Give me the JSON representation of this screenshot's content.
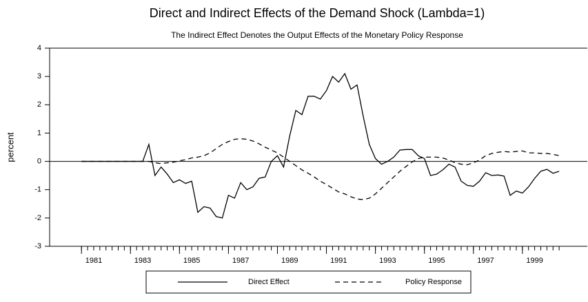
{
  "chart_data": {
    "type": "line",
    "title": "Direct and Indirect Effects of the Demand Shock (Lambda=1)",
    "subtitle": "The Indirect Effect Denotes the Output Effects of the Monetary Policy Response",
    "y_label": "percent",
    "x": [
      1981,
      1981.25,
      1981.5,
      1981.75,
      1982,
      1982.25,
      1982.5,
      1982.75,
      1983,
      1983.25,
      1983.5,
      1983.75,
      1984,
      1984.25,
      1984.5,
      1984.75,
      1985,
      1985.25,
      1985.5,
      1985.75,
      1986,
      1986.25,
      1986.5,
      1986.75,
      1987,
      1987.25,
      1987.5,
      1987.75,
      1988,
      1988.25,
      1988.5,
      1988.75,
      1989,
      1989.25,
      1989.5,
      1989.75,
      1990,
      1990.25,
      1990.5,
      1990.75,
      1991,
      1991.25,
      1991.5,
      1991.75,
      1992,
      1992.25,
      1992.5,
      1992.75,
      1993,
      1993.25,
      1993.5,
      1993.75,
      1994,
      1994.25,
      1994.5,
      1994.75,
      1995,
      1995.25,
      1995.5,
      1995.75,
      1996,
      1996.25,
      1996.5,
      1996.75,
      1997,
      1997.25,
      1997.5,
      1997.75,
      1998,
      1998.25,
      1998.5,
      1998.75,
      1999,
      1999.25,
      1999.5,
      1999.75,
      2000,
      2000.25,
      2000.5
    ],
    "series": [
      {
        "name": "Direct Effect",
        "color": "#000000",
        "dash": "solid",
        "values": [
          0,
          0,
          0,
          0,
          0,
          0,
          0,
          0,
          0,
          0,
          0,
          0.6,
          -0.5,
          -0.2,
          -0.45,
          -0.75,
          -0.65,
          -0.78,
          -0.7,
          -1.8,
          -1.6,
          -1.65,
          -1.95,
          -2.0,
          -1.2,
          -1.3,
          -0.75,
          -1.0,
          -0.9,
          -0.6,
          -0.55,
          0.0,
          0.2,
          -0.2,
          0.9,
          1.8,
          1.65,
          2.3,
          2.3,
          2.2,
          2.5,
          3.0,
          2.8,
          3.1,
          2.55,
          2.7,
          1.6,
          0.6,
          0.1,
          -0.1,
          0.0,
          0.15,
          0.4,
          0.42,
          0.42,
          0.2,
          0.1,
          -0.5,
          -0.45,
          -0.3,
          -0.1,
          -0.2,
          -0.7,
          -0.85,
          -0.88,
          -0.7,
          -0.4,
          -0.5,
          -0.48,
          -0.52,
          -1.2,
          -1.05,
          -1.12,
          -0.9,
          -0.6,
          -0.35,
          -0.28,
          -0.42,
          -0.35
        ]
      },
      {
        "name": "Policy Response",
        "color": "#000000",
        "dash": "dashed",
        "values": [
          0,
          0,
          0,
          0,
          0,
          0,
          0,
          0,
          0,
          0,
          0,
          0,
          -0.05,
          -0.08,
          -0.05,
          -0.03,
          0.02,
          0.06,
          0.12,
          0.15,
          0.2,
          0.3,
          0.45,
          0.6,
          0.7,
          0.78,
          0.8,
          0.78,
          0.72,
          0.62,
          0.5,
          0.4,
          0.3,
          0.15,
          0.0,
          -0.15,
          -0.3,
          -0.42,
          -0.55,
          -0.7,
          -0.82,
          -0.95,
          -1.08,
          -1.15,
          -1.25,
          -1.33,
          -1.35,
          -1.3,
          -1.15,
          -0.95,
          -0.75,
          -0.55,
          -0.35,
          -0.18,
          -0.02,
          0.1,
          0.15,
          0.15,
          0.15,
          0.12,
          0.05,
          -0.05,
          -0.1,
          -0.12,
          -0.05,
          0.05,
          0.2,
          0.28,
          0.32,
          0.35,
          0.33,
          0.35,
          0.37,
          0.3,
          0.3,
          0.28,
          0.28,
          0.25,
          0.2
        ]
      }
    ],
    "xlim": [
      1979.7,
      2001.65
    ],
    "xticks": [
      1981,
      1983,
      1985,
      1987,
      1989,
      1991,
      1993,
      1995,
      1997,
      1999
    ],
    "ylim": [
      -3,
      4
    ],
    "yticks": [
      -3,
      -2,
      -1,
      0,
      1,
      2,
      3,
      4
    ],
    "legend": "bottom"
  }
}
